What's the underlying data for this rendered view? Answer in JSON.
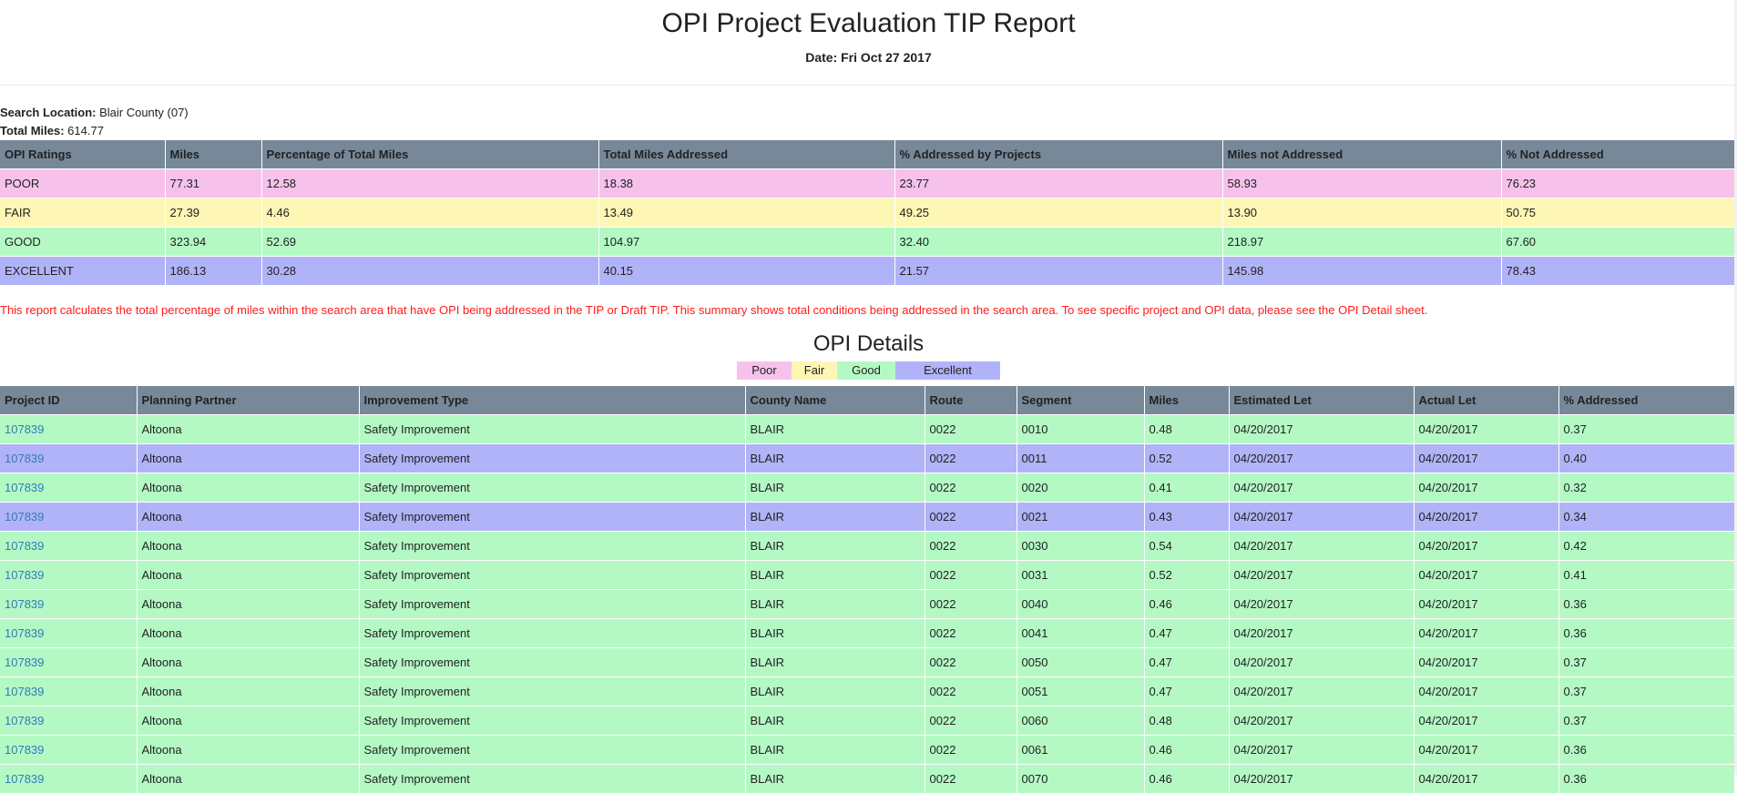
{
  "header": {
    "title": "OPI Project Evaluation TIP Report",
    "date": "Date: Fri Oct 27 2017"
  },
  "meta": {
    "search_location_label": "Search Location:",
    "search_location_value": "Blair County (07)",
    "total_miles_label": "Total Miles:",
    "total_miles_value": "614.77"
  },
  "summary": {
    "columns": [
      "OPI Ratings",
      "Miles",
      "Percentage of Total Miles",
      "Total Miles Addressed",
      "% Addressed by Projects",
      "Miles not Addressed",
      "% Not Addressed"
    ],
    "rows": [
      {
        "rating": "poor",
        "cells": [
          "POOR",
          "77.31",
          "12.58",
          "18.38",
          "23.77",
          "58.93",
          "76.23"
        ]
      },
      {
        "rating": "fair",
        "cells": [
          "FAIR",
          "27.39",
          "4.46",
          "13.49",
          "49.25",
          "13.90",
          "50.75"
        ]
      },
      {
        "rating": "good",
        "cells": [
          "GOOD",
          "323.94",
          "52.69",
          "104.97",
          "32.40",
          "218.97",
          "67.60"
        ]
      },
      {
        "rating": "excellent",
        "cells": [
          "EXCELLENT",
          "186.13",
          "30.28",
          "40.15",
          "21.57",
          "145.98",
          "78.43"
        ]
      }
    ]
  },
  "note": "This report calculates the total percentage of miles within the search area that have OPI being addressed in the TIP or Draft TIP. This summary shows total conditions being addressed in the search area. To see specific project and OPI data, please see the OPI Detail sheet.",
  "details": {
    "title": "OPI Details",
    "legend": [
      "Poor",
      "Fair",
      "Good",
      "Excellent"
    ],
    "columns": [
      "Project ID",
      "Planning Partner",
      "Improvement Type",
      "County Name",
      "Route",
      "Segment",
      "Miles",
      "Estimated Let",
      "Actual Let",
      "% Addressed"
    ],
    "rows": [
      {
        "rating": "good",
        "cells": [
          "107839",
          "Altoona",
          "Safety Improvement",
          "BLAIR",
          "0022",
          "0010",
          "0.48",
          "04/20/2017",
          "04/20/2017",
          "0.37"
        ]
      },
      {
        "rating": "excellent",
        "cells": [
          "107839",
          "Altoona",
          "Safety Improvement",
          "BLAIR",
          "0022",
          "0011",
          "0.52",
          "04/20/2017",
          "04/20/2017",
          "0.40"
        ]
      },
      {
        "rating": "good",
        "cells": [
          "107839",
          "Altoona",
          "Safety Improvement",
          "BLAIR",
          "0022",
          "0020",
          "0.41",
          "04/20/2017",
          "04/20/2017",
          "0.32"
        ]
      },
      {
        "rating": "excellent",
        "cells": [
          "107839",
          "Altoona",
          "Safety Improvement",
          "BLAIR",
          "0022",
          "0021",
          "0.43",
          "04/20/2017",
          "04/20/2017",
          "0.34"
        ]
      },
      {
        "rating": "good",
        "cells": [
          "107839",
          "Altoona",
          "Safety Improvement",
          "BLAIR",
          "0022",
          "0030",
          "0.54",
          "04/20/2017",
          "04/20/2017",
          "0.42"
        ]
      },
      {
        "rating": "good",
        "cells": [
          "107839",
          "Altoona",
          "Safety Improvement",
          "BLAIR",
          "0022",
          "0031",
          "0.52",
          "04/20/2017",
          "04/20/2017",
          "0.41"
        ]
      },
      {
        "rating": "good",
        "cells": [
          "107839",
          "Altoona",
          "Safety Improvement",
          "BLAIR",
          "0022",
          "0040",
          "0.46",
          "04/20/2017",
          "04/20/2017",
          "0.36"
        ]
      },
      {
        "rating": "good",
        "cells": [
          "107839",
          "Altoona",
          "Safety Improvement",
          "BLAIR",
          "0022",
          "0041",
          "0.47",
          "04/20/2017",
          "04/20/2017",
          "0.36"
        ]
      },
      {
        "rating": "good",
        "cells": [
          "107839",
          "Altoona",
          "Safety Improvement",
          "BLAIR",
          "0022",
          "0050",
          "0.47",
          "04/20/2017",
          "04/20/2017",
          "0.37"
        ]
      },
      {
        "rating": "good",
        "cells": [
          "107839",
          "Altoona",
          "Safety Improvement",
          "BLAIR",
          "0022",
          "0051",
          "0.47",
          "04/20/2017",
          "04/20/2017",
          "0.37"
        ]
      },
      {
        "rating": "good",
        "cells": [
          "107839",
          "Altoona",
          "Safety Improvement",
          "BLAIR",
          "0022",
          "0060",
          "0.48",
          "04/20/2017",
          "04/20/2017",
          "0.37"
        ]
      },
      {
        "rating": "good",
        "cells": [
          "107839",
          "Altoona",
          "Safety Improvement",
          "BLAIR",
          "0022",
          "0061",
          "0.46",
          "04/20/2017",
          "04/20/2017",
          "0.36"
        ]
      },
      {
        "rating": "good",
        "cells": [
          "107839",
          "Altoona",
          "Safety Improvement",
          "BLAIR",
          "0022",
          "0070",
          "0.46",
          "04/20/2017",
          "04/20/2017",
          "0.36"
        ]
      }
    ]
  },
  "colors": {
    "header_bg": "#778899",
    "poor": "#f6c2ec",
    "fair": "#fdf6b4",
    "good": "#b4f9c4",
    "excellent": "#b1b3f8",
    "note_text": "#ff1a1a",
    "link": "#337ab7"
  }
}
